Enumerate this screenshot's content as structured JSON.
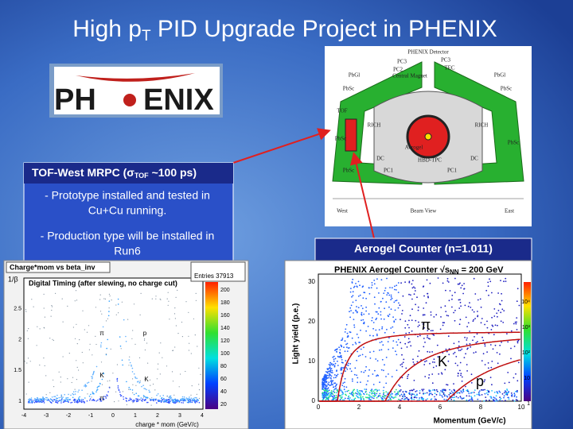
{
  "title": {
    "pre": "High p",
    "sub": "T",
    "post": " PID Upgrade Project in PHENIX"
  },
  "logo": {
    "left": "PH",
    "right": "ENIX"
  },
  "detector": {
    "title": "PHENIX Detector",
    "labels": [
      "PC3",
      "PC2",
      "Central Magnet",
      "TEC",
      "PC3",
      "PbSc",
      "PbSc",
      "PbSc",
      "PbSc",
      "PbSc",
      "PbGl",
      "PbGl",
      "RICH",
      "RICH",
      "DC",
      "DC",
      "PC1",
      "PC1",
      "HBD-TPC",
      "Aerogel",
      "TOF"
    ],
    "bottom": [
      "West",
      "Beam View",
      "East"
    ]
  },
  "tof_box": {
    "heading": {
      "pre": "TOF-West MRPC (σ",
      "sub": "TOF",
      "post": " ~100 ps)"
    },
    "items": [
      [
        "- Prototype installed and tested in",
        "Cu+Cu running."
      ],
      [
        "- Production type will be installed in",
        "Run6"
      ]
    ]
  },
  "aerogel_box": {
    "label": "Aerogel Counter (n=1.011)"
  },
  "tof_plot": {
    "name": "Charge*mom vs beta_inv",
    "title": "Digital Timing (after slewing, no charge cut)",
    "stats": "Entries  37913",
    "x_label": "charge * mom (GeV/c)",
    "y_label": "1/β",
    "xticks": [
      "-4",
      "-3",
      "-2",
      "-1",
      "0",
      "1",
      "2",
      "3",
      "4"
    ],
    "yticks": [
      "1",
      "1.5",
      "2",
      "2.5"
    ],
    "scale": [
      "200",
      "180",
      "160",
      "140",
      "120",
      "100",
      "80",
      "60",
      "40",
      "20"
    ],
    "particles": [
      "π",
      "p",
      "K",
      "K",
      "π"
    ]
  },
  "aerogel_plot": {
    "title": {
      "pre": "PHENIX Aerogel Counter  √s",
      "sub": "NN",
      "post": " = 200 GeV"
    },
    "x_label": "Momentum (GeV/c)",
    "y_label": "Light yield (p.e.)",
    "xticks": [
      "0",
      "2",
      "4",
      "6",
      "8",
      "10"
    ],
    "yticks": [
      "0",
      "10",
      "20",
      "30"
    ],
    "scale": [
      "1",
      "10",
      "10²",
      "10³",
      "10⁴"
    ],
    "particles": [
      "π",
      "K",
      "p"
    ]
  }
}
